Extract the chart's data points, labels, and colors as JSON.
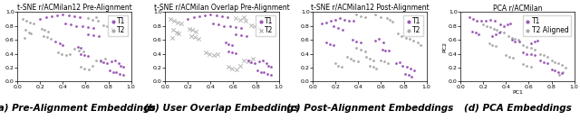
{
  "subplots": [
    {
      "title": "t-SNE r/ACMilan12 Pre-Alignment",
      "xlabel": "",
      "ylabel": "",
      "xlim": [
        0.0,
        1.0
      ],
      "ylim": [
        0.0,
        1.0
      ],
      "xticks": [
        0.0,
        0.2,
        0.4,
        0.6,
        0.8,
        1.0
      ],
      "yticks": [
        0.0,
        0.2,
        0.4,
        0.6,
        0.8,
        1.0
      ],
      "caption": "(a) Pre-Alignment Embeddings",
      "t1_marker": "o",
      "t2_marker": "o",
      "t1_color": "#9b59b6",
      "t2_color": "#aaaaaa",
      "t1_points": [
        [
          0.2,
          0.9
        ],
        [
          0.25,
          0.92
        ],
        [
          0.3,
          0.94
        ],
        [
          0.35,
          0.95
        ],
        [
          0.4,
          0.96
        ],
        [
          0.45,
          0.95
        ],
        [
          0.5,
          0.94
        ],
        [
          0.55,
          0.93
        ],
        [
          0.42,
          0.84
        ],
        [
          0.47,
          0.82
        ],
        [
          0.52,
          0.8
        ],
        [
          0.57,
          0.79
        ],
        [
          0.62,
          0.78
        ],
        [
          0.67,
          0.77
        ],
        [
          0.62,
          0.68
        ],
        [
          0.67,
          0.67
        ],
        [
          0.72,
          0.66
        ],
        [
          0.33,
          0.57
        ],
        [
          0.37,
          0.55
        ],
        [
          0.4,
          0.53
        ],
        [
          0.53,
          0.5
        ],
        [
          0.56,
          0.48
        ],
        [
          0.73,
          0.3
        ],
        [
          0.76,
          0.28
        ],
        [
          0.79,
          0.27
        ],
        [
          0.83,
          0.29
        ],
        [
          0.86,
          0.31
        ],
        [
          0.89,
          0.26
        ],
        [
          0.91,
          0.23
        ],
        [
          0.93,
          0.21
        ],
        [
          0.81,
          0.16
        ],
        [
          0.84,
          0.14
        ],
        [
          0.87,
          0.13
        ],
        [
          0.9,
          0.11
        ],
        [
          0.93,
          0.09
        ],
        [
          0.56,
          0.39
        ],
        [
          0.59,
          0.38
        ],
        [
          0.62,
          0.37
        ]
      ],
      "t2_points": [
        [
          0.05,
          0.9
        ],
        [
          0.08,
          0.87
        ],
        [
          0.11,
          0.85
        ],
        [
          0.14,
          0.83
        ],
        [
          0.07,
          0.74
        ],
        [
          0.1,
          0.71
        ],
        [
          0.12,
          0.69
        ],
        [
          0.06,
          0.63
        ],
        [
          0.21,
          0.76
        ],
        [
          0.24,
          0.74
        ],
        [
          0.27,
          0.72
        ],
        [
          0.23,
          0.66
        ],
        [
          0.26,
          0.64
        ],
        [
          0.29,
          0.62
        ],
        [
          0.62,
          0.91
        ],
        [
          0.66,
          0.89
        ],
        [
          0.71,
          0.87
        ],
        [
          0.69,
          0.93
        ],
        [
          0.76,
          0.81
        ],
        [
          0.79,
          0.79
        ],
        [
          0.83,
          0.77
        ],
        [
          0.5,
          0.47
        ],
        [
          0.54,
          0.45
        ],
        [
          0.58,
          0.43
        ],
        [
          0.36,
          0.42
        ],
        [
          0.39,
          0.4
        ],
        [
          0.43,
          0.38
        ],
        [
          0.46,
          0.4
        ],
        [
          0.56,
          0.21
        ],
        [
          0.59,
          0.19
        ],
        [
          0.63,
          0.17
        ],
        [
          0.66,
          0.23
        ],
        [
          0.69,
          0.31
        ],
        [
          0.73,
          0.29
        ],
        [
          0.77,
          0.33
        ]
      ]
    },
    {
      "title": "t-SNE r/ACMilan Overlap Pre-Alignment",
      "xlabel": "",
      "ylabel": "",
      "xlim": [
        0.0,
        1.0
      ],
      "ylim": [
        0.0,
        1.0
      ],
      "xticks": [
        0.0,
        0.2,
        0.4,
        0.6,
        0.8,
        1.0
      ],
      "yticks": [
        0.0,
        0.2,
        0.4,
        0.6,
        0.8,
        1.0
      ],
      "caption": "(b) User Overlap Embeddings",
      "t1_marker": "o",
      "t2_marker": "x",
      "t1_color": "#9b59b6",
      "t2_color": "#aaaaaa",
      "t1_points": [
        [
          0.2,
          0.9
        ],
        [
          0.25,
          0.92
        ],
        [
          0.3,
          0.94
        ],
        [
          0.35,
          0.95
        ],
        [
          0.4,
          0.96
        ],
        [
          0.45,
          0.95
        ],
        [
          0.5,
          0.94
        ],
        [
          0.55,
          0.93
        ],
        [
          0.42,
          0.84
        ],
        [
          0.47,
          0.82
        ],
        [
          0.52,
          0.8
        ],
        [
          0.57,
          0.79
        ],
        [
          0.62,
          0.78
        ],
        [
          0.67,
          0.77
        ],
        [
          0.62,
          0.68
        ],
        [
          0.67,
          0.67
        ],
        [
          0.72,
          0.66
        ],
        [
          0.53,
          0.56
        ],
        [
          0.56,
          0.54
        ],
        [
          0.59,
          0.52
        ],
        [
          0.56,
          0.43
        ],
        [
          0.59,
          0.42
        ],
        [
          0.62,
          0.41
        ],
        [
          0.73,
          0.3
        ],
        [
          0.76,
          0.28
        ],
        [
          0.79,
          0.27
        ],
        [
          0.83,
          0.29
        ],
        [
          0.86,
          0.31
        ],
        [
          0.89,
          0.26
        ],
        [
          0.91,
          0.23
        ],
        [
          0.93,
          0.21
        ],
        [
          0.81,
          0.16
        ],
        [
          0.84,
          0.14
        ],
        [
          0.87,
          0.13
        ],
        [
          0.9,
          0.11
        ],
        [
          0.93,
          0.09
        ]
      ],
      "t2_points": [
        [
          0.05,
          0.9
        ],
        [
          0.08,
          0.87
        ],
        [
          0.11,
          0.85
        ],
        [
          0.14,
          0.83
        ],
        [
          0.07,
          0.74
        ],
        [
          0.1,
          0.71
        ],
        [
          0.12,
          0.69
        ],
        [
          0.06,
          0.63
        ],
        [
          0.21,
          0.76
        ],
        [
          0.24,
          0.74
        ],
        [
          0.27,
          0.72
        ],
        [
          0.23,
          0.66
        ],
        [
          0.26,
          0.64
        ],
        [
          0.29,
          0.62
        ],
        [
          0.62,
          0.91
        ],
        [
          0.66,
          0.89
        ],
        [
          0.71,
          0.87
        ],
        [
          0.69,
          0.93
        ],
        [
          0.76,
          0.81
        ],
        [
          0.79,
          0.79
        ],
        [
          0.83,
          0.77
        ],
        [
          0.36,
          0.42
        ],
        [
          0.39,
          0.4
        ],
        [
          0.43,
          0.38
        ],
        [
          0.46,
          0.4
        ],
        [
          0.56,
          0.21
        ],
        [
          0.59,
          0.19
        ],
        [
          0.63,
          0.17
        ],
        [
          0.66,
          0.23
        ],
        [
          0.69,
          0.31
        ],
        [
          0.73,
          0.29
        ],
        [
          0.77,
          0.33
        ]
      ]
    },
    {
      "title": "t-SNE r/ACMilan12 Post-Alignment",
      "xlabel": "",
      "ylabel": "",
      "xlim": [
        0.0,
        1.0
      ],
      "ylim": [
        0.0,
        1.0
      ],
      "xticks": [
        0.0,
        0.2,
        0.4,
        0.6,
        0.8,
        1.0
      ],
      "yticks": [
        0.0,
        0.2,
        0.4,
        0.6,
        0.8,
        1.0
      ],
      "caption": "(c) Post-Alignment Embeddings",
      "t1_marker": "o",
      "t2_marker": "o",
      "t1_color": "#9b59b6",
      "t2_color": "#aaaaaa",
      "t1_points": [
        [
          0.08,
          0.83
        ],
        [
          0.12,
          0.85
        ],
        [
          0.16,
          0.87
        ],
        [
          0.2,
          0.89
        ],
        [
          0.24,
          0.91
        ],
        [
          0.28,
          0.89
        ],
        [
          0.32,
          0.88
        ],
        [
          0.36,
          0.87
        ],
        [
          0.18,
          0.79
        ],
        [
          0.22,
          0.77
        ],
        [
          0.26,
          0.75
        ],
        [
          0.12,
          0.56
        ],
        [
          0.15,
          0.54
        ],
        [
          0.18,
          0.52
        ],
        [
          0.55,
          0.59
        ],
        [
          0.58,
          0.61
        ],
        [
          0.62,
          0.56
        ],
        [
          0.35,
          0.6
        ],
        [
          0.38,
          0.57
        ],
        [
          0.42,
          0.56
        ],
        [
          0.73,
          0.26
        ],
        [
          0.76,
          0.28
        ],
        [
          0.79,
          0.23
        ],
        [
          0.83,
          0.21
        ],
        [
          0.86,
          0.19
        ],
        [
          0.89,
          0.16
        ],
        [
          0.81,
          0.11
        ],
        [
          0.84,
          0.09
        ],
        [
          0.87,
          0.07
        ],
        [
          0.61,
          0.46
        ],
        [
          0.64,
          0.45
        ],
        [
          0.67,
          0.44
        ]
      ],
      "t2_points": [
        [
          0.55,
          0.96
        ],
        [
          0.6,
          0.93
        ],
        [
          0.65,
          0.91
        ],
        [
          0.68,
          0.89
        ],
        [
          0.7,
          0.86
        ],
        [
          0.38,
          0.96
        ],
        [
          0.42,
          0.94
        ],
        [
          0.46,
          0.92
        ],
        [
          0.75,
          0.69
        ],
        [
          0.78,
          0.66
        ],
        [
          0.82,
          0.63
        ],
        [
          0.85,
          0.61
        ],
        [
          0.88,
          0.59
        ],
        [
          0.92,
          0.56
        ],
        [
          0.95,
          0.53
        ],
        [
          0.3,
          0.36
        ],
        [
          0.33,
          0.33
        ],
        [
          0.36,
          0.31
        ],
        [
          0.4,
          0.29
        ],
        [
          0.2,
          0.26
        ],
        [
          0.22,
          0.23
        ],
        [
          0.25,
          0.21
        ],
        [
          0.5,
          0.23
        ],
        [
          0.53,
          0.21
        ],
        [
          0.56,
          0.19
        ],
        [
          0.38,
          0.49
        ],
        [
          0.42,
          0.46
        ],
        [
          0.46,
          0.43
        ],
        [
          0.6,
          0.31
        ],
        [
          0.63,
          0.29
        ],
        [
          0.66,
          0.27
        ],
        [
          0.47,
          0.35
        ],
        [
          0.5,
          0.33
        ],
        [
          0.53,
          0.31
        ]
      ]
    },
    {
      "title": "PCA r/ACMilan",
      "xlabel": "PC1",
      "ylabel": "PC2",
      "xlim": [
        0.0,
        1.0
      ],
      "ylim": [
        0.0,
        1.0
      ],
      "xticks": [
        0.0,
        0.2,
        0.4,
        0.6,
        0.8,
        1.0
      ],
      "yticks": [
        0.0,
        0.2,
        0.4,
        0.6,
        0.8,
        1.0
      ],
      "caption": "(d) PCA Embeddings",
      "t1_marker": "o",
      "t2_marker": "o",
      "t1_color": "#9b59b6",
      "t2_color": "#aaaaaa",
      "t1_label": "T1",
      "t2_label": "T2 Aligned",
      "t1_points": [
        [
          0.08,
          0.92
        ],
        [
          0.11,
          0.9
        ],
        [
          0.14,
          0.88
        ],
        [
          0.18,
          0.87
        ],
        [
          0.22,
          0.88
        ],
        [
          0.26,
          0.89
        ],
        [
          0.3,
          0.88
        ],
        [
          0.35,
          0.82
        ],
        [
          0.38,
          0.8
        ],
        [
          0.41,
          0.82
        ],
        [
          0.44,
          0.84
        ],
        [
          0.1,
          0.72
        ],
        [
          0.13,
          0.7
        ],
        [
          0.16,
          0.68
        ],
        [
          0.28,
          0.66
        ],
        [
          0.31,
          0.68
        ],
        [
          0.34,
          0.7
        ],
        [
          0.45,
          0.6
        ],
        [
          0.48,
          0.58
        ],
        [
          0.52,
          0.57
        ],
        [
          0.62,
          0.55
        ],
        [
          0.65,
          0.57
        ],
        [
          0.68,
          0.59
        ],
        [
          0.55,
          0.42
        ],
        [
          0.58,
          0.4
        ],
        [
          0.62,
          0.39
        ],
        [
          0.65,
          0.38
        ],
        [
          0.7,
          0.3
        ],
        [
          0.73,
          0.28
        ],
        [
          0.76,
          0.26
        ],
        [
          0.8,
          0.18
        ],
        [
          0.83,
          0.16
        ],
        [
          0.86,
          0.14
        ],
        [
          0.89,
          0.12
        ]
      ],
      "t2_points": [
        [
          0.2,
          0.82
        ],
        [
          0.23,
          0.8
        ],
        [
          0.26,
          0.78
        ],
        [
          0.29,
          0.76
        ],
        [
          0.32,
          0.74
        ],
        [
          0.35,
          0.72
        ],
        [
          0.38,
          0.7
        ],
        [
          0.42,
          0.65
        ],
        [
          0.45,
          0.63
        ],
        [
          0.48,
          0.61
        ],
        [
          0.51,
          0.6
        ],
        [
          0.55,
          0.52
        ],
        [
          0.58,
          0.5
        ],
        [
          0.62,
          0.48
        ],
        [
          0.65,
          0.46
        ],
        [
          0.7,
          0.4
        ],
        [
          0.73,
          0.38
        ],
        [
          0.76,
          0.36
        ],
        [
          0.8,
          0.3
        ],
        [
          0.83,
          0.28
        ],
        [
          0.86,
          0.26
        ],
        [
          0.89,
          0.24
        ],
        [
          0.92,
          0.2
        ],
        [
          0.9,
          0.14
        ],
        [
          0.87,
          0.1
        ],
        [
          0.55,
          0.25
        ],
        [
          0.58,
          0.23
        ],
        [
          0.62,
          0.21
        ],
        [
          0.4,
          0.38
        ],
        [
          0.43,
          0.36
        ],
        [
          0.46,
          0.34
        ],
        [
          0.25,
          0.55
        ],
        [
          0.28,
          0.53
        ],
        [
          0.31,
          0.51
        ]
      ]
    }
  ],
  "fig_bg": "#ffffff",
  "caption_fontsize": 7.5,
  "title_fontsize": 5.5,
  "tick_fontsize": 4.5,
  "legend_fontsize": 5.5,
  "dot_size": 4
}
